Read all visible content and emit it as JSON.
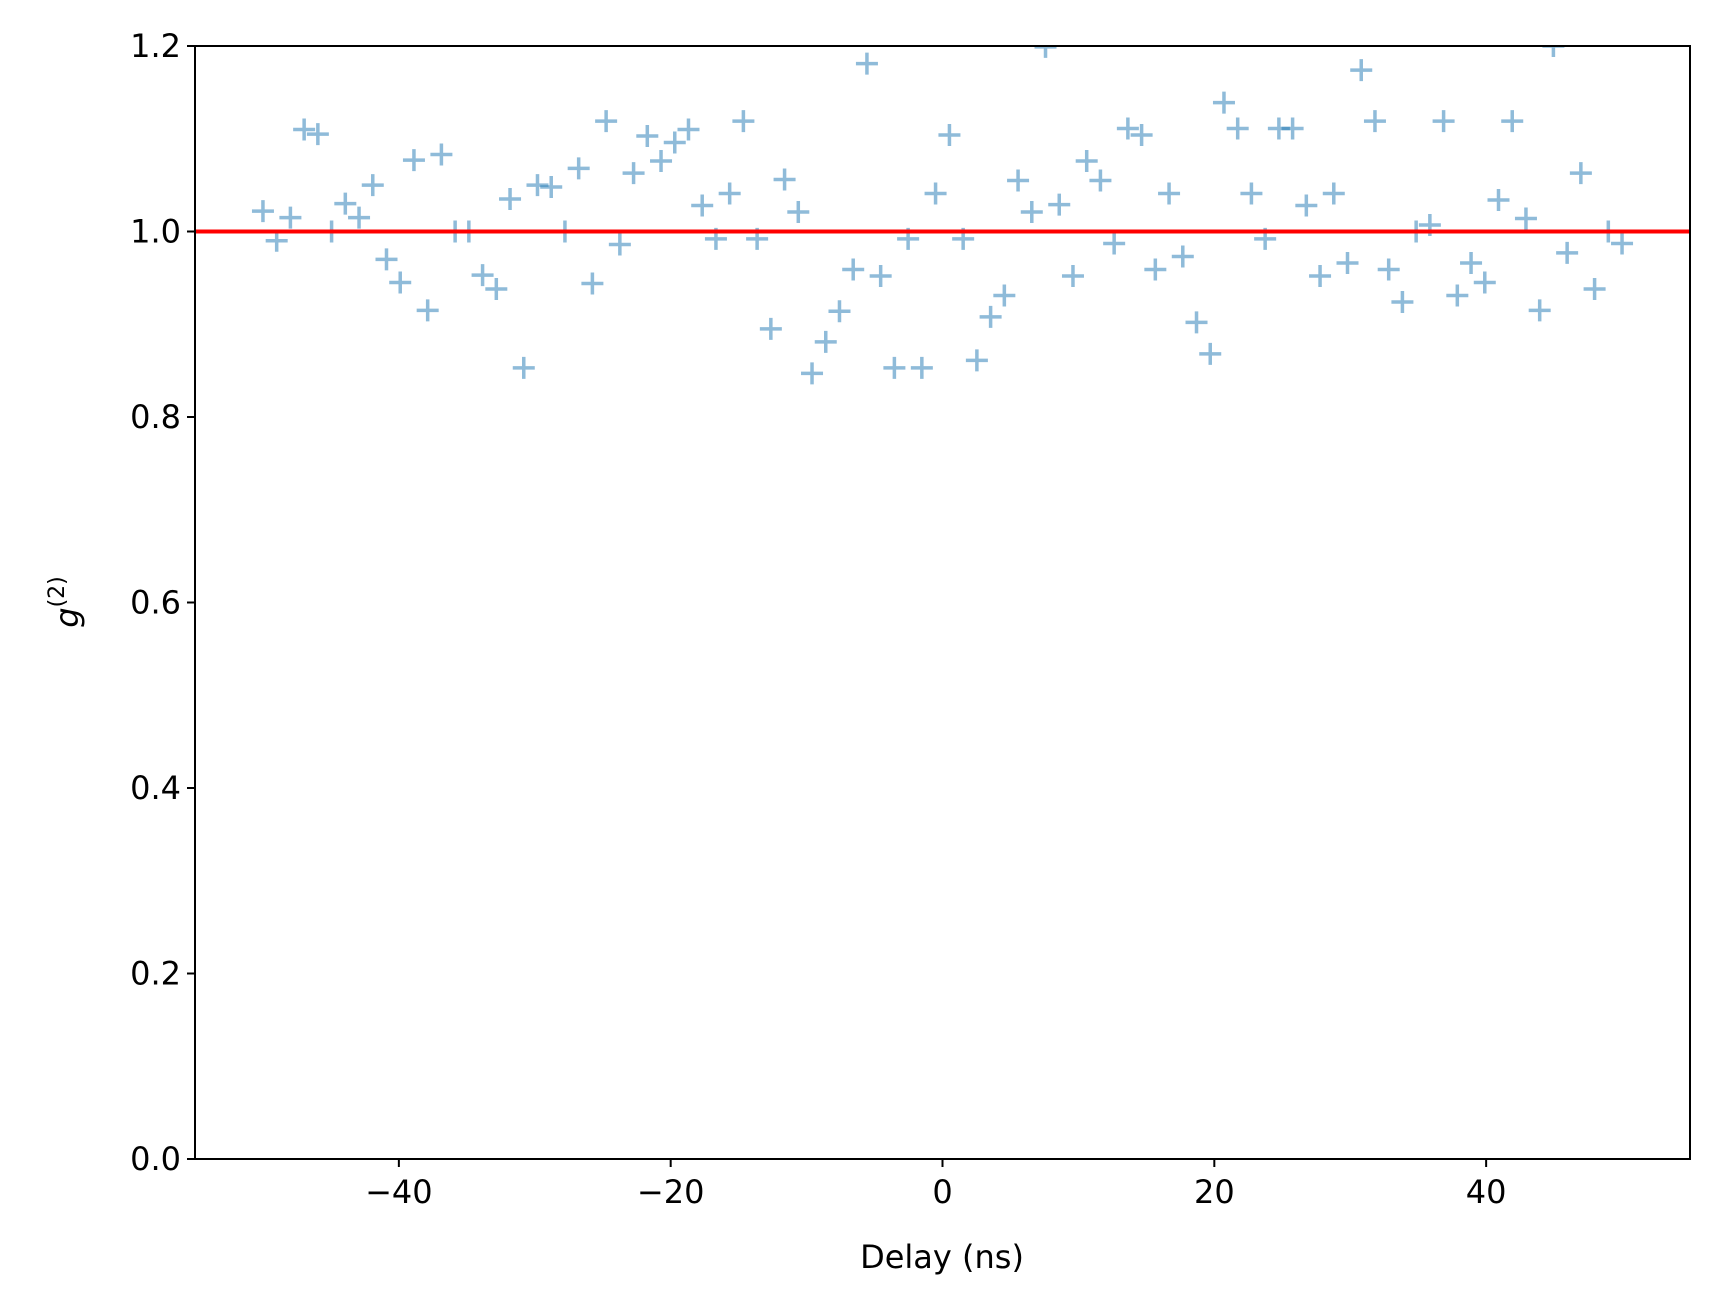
{
  "chart_data": {
    "type": "scatter",
    "xlabel": "Delay (ns)",
    "ylabel": "g",
    "ylabel_superscript": "(2)",
    "x": [
      -50,
      -48.99,
      -47.98,
      -46.97,
      -45.96,
      -44.95,
      -43.94,
      -42.93,
      -41.92,
      -40.91,
      -39.9,
      -38.89,
      -37.88,
      -36.87,
      -35.86,
      -34.85,
      -33.84,
      -32.83,
      -31.82,
      -30.81,
      -29.8,
      -28.79,
      -27.78,
      -26.77,
      -25.76,
      -24.75,
      -23.74,
      -22.73,
      -21.72,
      -20.71,
      -19.7,
      -18.69,
      -17.68,
      -16.67,
      -15.66,
      -14.65,
      -13.64,
      -12.63,
      -11.62,
      -10.61,
      -9.6,
      -8.59,
      -7.58,
      -6.57,
      -5.56,
      -4.55,
      -3.54,
      -2.53,
      -1.52,
      -0.51,
      0.51,
      1.52,
      2.53,
      3.54,
      4.55,
      5.56,
      6.57,
      7.58,
      8.59,
      9.6,
      10.61,
      11.62,
      12.63,
      13.64,
      14.65,
      15.66,
      16.67,
      17.68,
      18.69,
      19.7,
      20.71,
      21.72,
      22.73,
      23.74,
      24.75,
      25.76,
      26.77,
      27.78,
      28.79,
      29.8,
      30.81,
      31.82,
      32.83,
      33.84,
      34.85,
      35.86,
      36.87,
      37.88,
      38.89,
      39.9,
      40.91,
      41.92,
      42.93,
      43.94,
      44.95,
      45.96,
      46.97,
      47.98,
      48.99,
      50
    ],
    "values": [
      1.022,
      0.99,
      1.015,
      1.11,
      1.105,
      1.0,
      1.03,
      1.015,
      1.05,
      0.97,
      0.945,
      1.077,
      0.915,
      1.083,
      1.0,
      1.0,
      0.953,
      0.938,
      1.035,
      0.853,
      1.05,
      1.048,
      1.0,
      1.068,
      0.944,
      1.119,
      0.986,
      1.063,
      1.103,
      1.076,
      1.096,
      1.11,
      1.028,
      0.992,
      1.041,
      1.119,
      0.992,
      0.895,
      1.056,
      1.021,
      0.847,
      0.881,
      0.914,
      0.959,
      1.181,
      0.952,
      0.853,
      0.992,
      0.853,
      1.041,
      1.104,
      0.992,
      0.861,
      0.908,
      0.931,
      1.055,
      1.021,
      1.199,
      1.029,
      0.952,
      1.076,
      1.055,
      0.987,
      1.111,
      1.104,
      0.959,
      1.041,
      0.973,
      0.902,
      0.868,
      1.139,
      1.111,
      1.041,
      0.992,
      1.111,
      1.111,
      1.028,
      0.952,
      1.041,
      0.966,
      1.174,
      1.119,
      0.959,
      0.924,
      1.0,
      1.007,
      1.119,
      0.931,
      0.966,
      0.945,
      1.034,
      1.119,
      1.014,
      0.915,
      1.2,
      0.977,
      1.063,
      0.938,
      1.0,
      0.987
    ],
    "color": "#1f77b4",
    "marker_alpha": 0.5,
    "hline": {
      "y": 1.0,
      "color": "#ff0000"
    },
    "xlim": [
      -55,
      55
    ],
    "xticks": [
      {
        "value": -40,
        "label": "−40"
      },
      {
        "value": -20,
        "label": "−20"
      },
      0,
      20,
      40
    ],
    "ylim": [
      0,
      1.2
    ],
    "yticks": [
      {
        "value": 0,
        "label": "0.0"
      },
      0.2,
      0.4,
      0.6,
      0.8,
      {
        "value": 1,
        "label": "1.0"
      },
      1.2
    ]
  }
}
